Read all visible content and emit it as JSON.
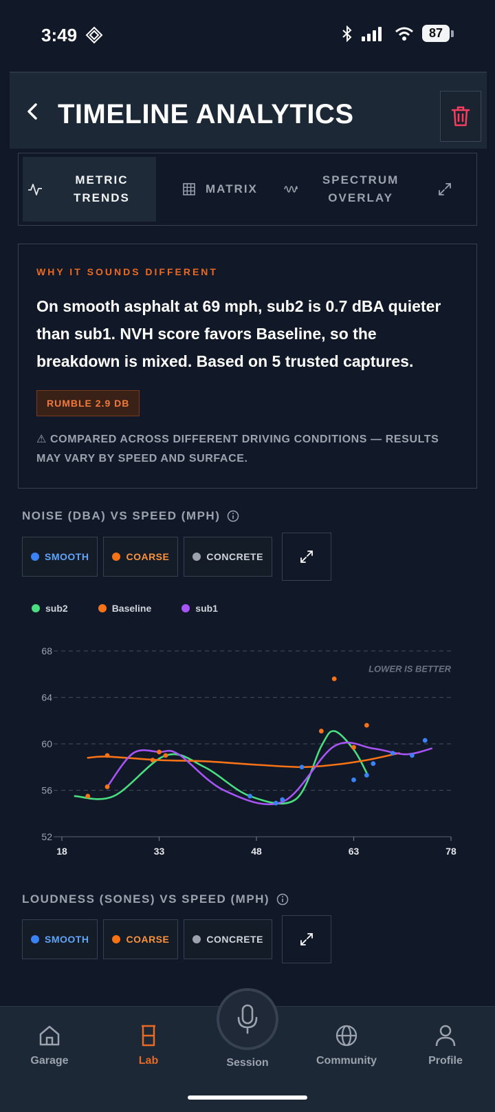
{
  "status": {
    "time": "3:49",
    "battery": "87"
  },
  "header": {
    "title": "TIMELINE ANALYTICS"
  },
  "tabs": [
    {
      "label_line1": "METRIC",
      "label_line2": "TRENDS",
      "icon": "pulse-icon",
      "active": true
    },
    {
      "label_line1": "MATRIX",
      "label_line2": "",
      "icon": "grid-icon",
      "active": false
    },
    {
      "label_line1": "SPECTRUM",
      "label_line2": "OVERLAY",
      "icon": "wave-icon",
      "active": false
    }
  ],
  "insight": {
    "kicker": "WHY IT SOUNDS DIFFERENT",
    "body": "On smooth asphalt at 69 mph, sub2 is 0.7 dBA quieter than sub1. NVH score favors Baseline, so the breakdown is mixed. Based on 5 trusted captures.",
    "pill": "RUMBLE 2.9 DB",
    "warning": "⚠ COMPARED ACROSS DIFFERENT DRIVING CONDITIONS — RESULTS MAY VARY BY SPEED AND SURFACE."
  },
  "noise_section": {
    "title": "NOISE (DBA) VS SPEED (MPH)",
    "chips": [
      {
        "label": "SMOOTH",
        "color": "#3b82f6"
      },
      {
        "label": "COARSE",
        "color": "#f97316"
      },
      {
        "label": "CONCRETE",
        "color": "#9ca3af"
      }
    ]
  },
  "loudness_section": {
    "title": "LOUDNESS (SONES) VS SPEED (MPH)",
    "chips": [
      {
        "label": "SMOOTH",
        "color": "#3b82f6"
      },
      {
        "label": "COARSE",
        "color": "#f97316"
      },
      {
        "label": "CONCRETE",
        "color": "#9ca3af"
      }
    ]
  },
  "chart_data": {
    "type": "line",
    "annotation": "LOWER IS BETTER",
    "x_ticks": [
      18,
      33,
      48,
      63,
      78
    ],
    "y_ticks": [
      68,
      64,
      60,
      56,
      52
    ],
    "xlim": [
      18,
      78
    ],
    "ylim": [
      52,
      68
    ],
    "grid": true,
    "legend_position": "top-left",
    "series": [
      {
        "name": "sub2",
        "color": "#4ade80",
        "x": [
          20,
          26,
          34,
          40,
          47,
          54,
          58,
          60,
          63,
          65
        ],
        "y": [
          55.5,
          55.5,
          59.0,
          58.0,
          55.5,
          55.2,
          59.8,
          61.1,
          59.5,
          57.5
        ]
      },
      {
        "name": "Baseline",
        "color": "#f97316",
        "x": [
          22,
          25,
          33,
          40,
          48,
          55,
          60,
          65,
          70
        ],
        "y": [
          58.8,
          58.9,
          58.6,
          58.5,
          58.2,
          58.0,
          58.2,
          58.6,
          59.2
        ]
      },
      {
        "name": "sub1",
        "color": "#a855f7",
        "x": [
          25,
          29,
          33,
          36,
          43,
          52,
          60,
          66,
          71,
          75
        ],
        "y": [
          56.3,
          59.2,
          59.3,
          59.1,
          56.0,
          55.0,
          59.8,
          59.6,
          59.1,
          59.6
        ]
      }
    ],
    "points": [
      {
        "x": 22,
        "y": 55.5,
        "color": "#f97316"
      },
      {
        "x": 25,
        "y": 59.0,
        "color": "#f97316"
      },
      {
        "x": 25,
        "y": 56.3,
        "color": "#f97316"
      },
      {
        "x": 32,
        "y": 58.6,
        "color": "#f97316"
      },
      {
        "x": 33,
        "y": 59.3,
        "color": "#f97316"
      },
      {
        "x": 34,
        "y": 59.0,
        "color": "#f97316"
      },
      {
        "x": 60,
        "y": 65.6,
        "color": "#f97316"
      },
      {
        "x": 58,
        "y": 61.1,
        "color": "#f97316"
      },
      {
        "x": 63,
        "y": 59.7,
        "color": "#f97316"
      },
      {
        "x": 65,
        "y": 61.6,
        "color": "#f97316"
      },
      {
        "x": 47,
        "y": 55.5,
        "color": "#3b82f6"
      },
      {
        "x": 51,
        "y": 54.9,
        "color": "#3b82f6"
      },
      {
        "x": 52,
        "y": 55.2,
        "color": "#3b82f6"
      },
      {
        "x": 55,
        "y": 58.0,
        "color": "#3b82f6"
      },
      {
        "x": 63,
        "y": 56.9,
        "color": "#3b82f6"
      },
      {
        "x": 65,
        "y": 57.3,
        "color": "#3b82f6"
      },
      {
        "x": 66,
        "y": 58.3,
        "color": "#3b82f6"
      },
      {
        "x": 69,
        "y": 59.2,
        "color": "#3b82f6"
      },
      {
        "x": 72,
        "y": 59.0,
        "color": "#3b82f6"
      },
      {
        "x": 74,
        "y": 60.3,
        "color": "#3b82f6"
      }
    ]
  },
  "nav": {
    "garage": "Garage",
    "lab": "Lab",
    "session": "Session",
    "community": "Community",
    "profile": "Profile"
  }
}
